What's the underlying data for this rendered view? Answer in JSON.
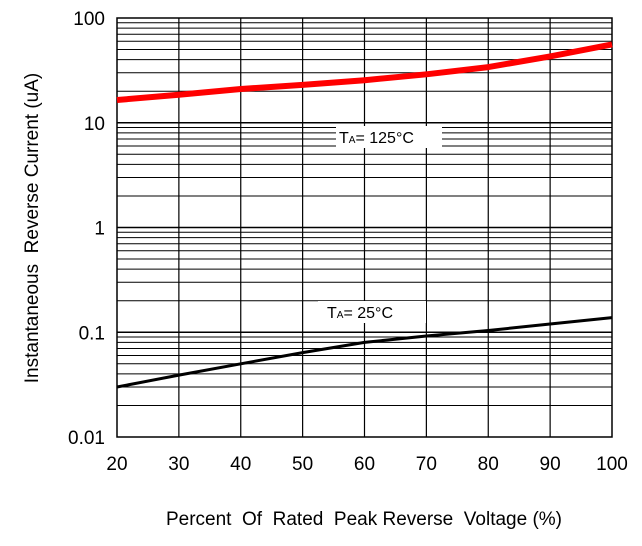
{
  "chart_data": {
    "type": "line",
    "title": "",
    "xlabel": "Percent  Of  Rated  Peak Reverse  Voltage (%)",
    "ylabel": "Instantaneous  Reverse Current (uA)",
    "xlim": [
      20,
      100
    ],
    "ylim": [
      0.01,
      100
    ],
    "yscale": "log",
    "grid": true,
    "x_ticks": [
      "20",
      "30",
      "40",
      "50",
      "60",
      "70",
      "80",
      "90",
      "100"
    ],
    "y_ticks": [
      "0.01",
      "0.1",
      "1",
      "10",
      "100"
    ],
    "series": [
      {
        "label_prefix": "T",
        "label_sub": "A",
        "label_suffix": "= 125°C",
        "color": "#ff0000",
        "x": [
          20,
          30,
          40,
          50,
          60,
          70,
          80,
          90,
          100
        ],
        "values": [
          16.5,
          18.5,
          21,
          23,
          25.5,
          29,
          34,
          43,
          56
        ]
      },
      {
        "label_prefix": "T",
        "label_sub": "A",
        "label_suffix": "= 25°C",
        "color": "#000000",
        "x": [
          20,
          30,
          40,
          50,
          60,
          70,
          80,
          90,
          100
        ],
        "values": [
          0.03,
          0.039,
          0.05,
          0.064,
          0.08,
          0.092,
          0.104,
          0.12,
          0.138
        ]
      }
    ]
  }
}
